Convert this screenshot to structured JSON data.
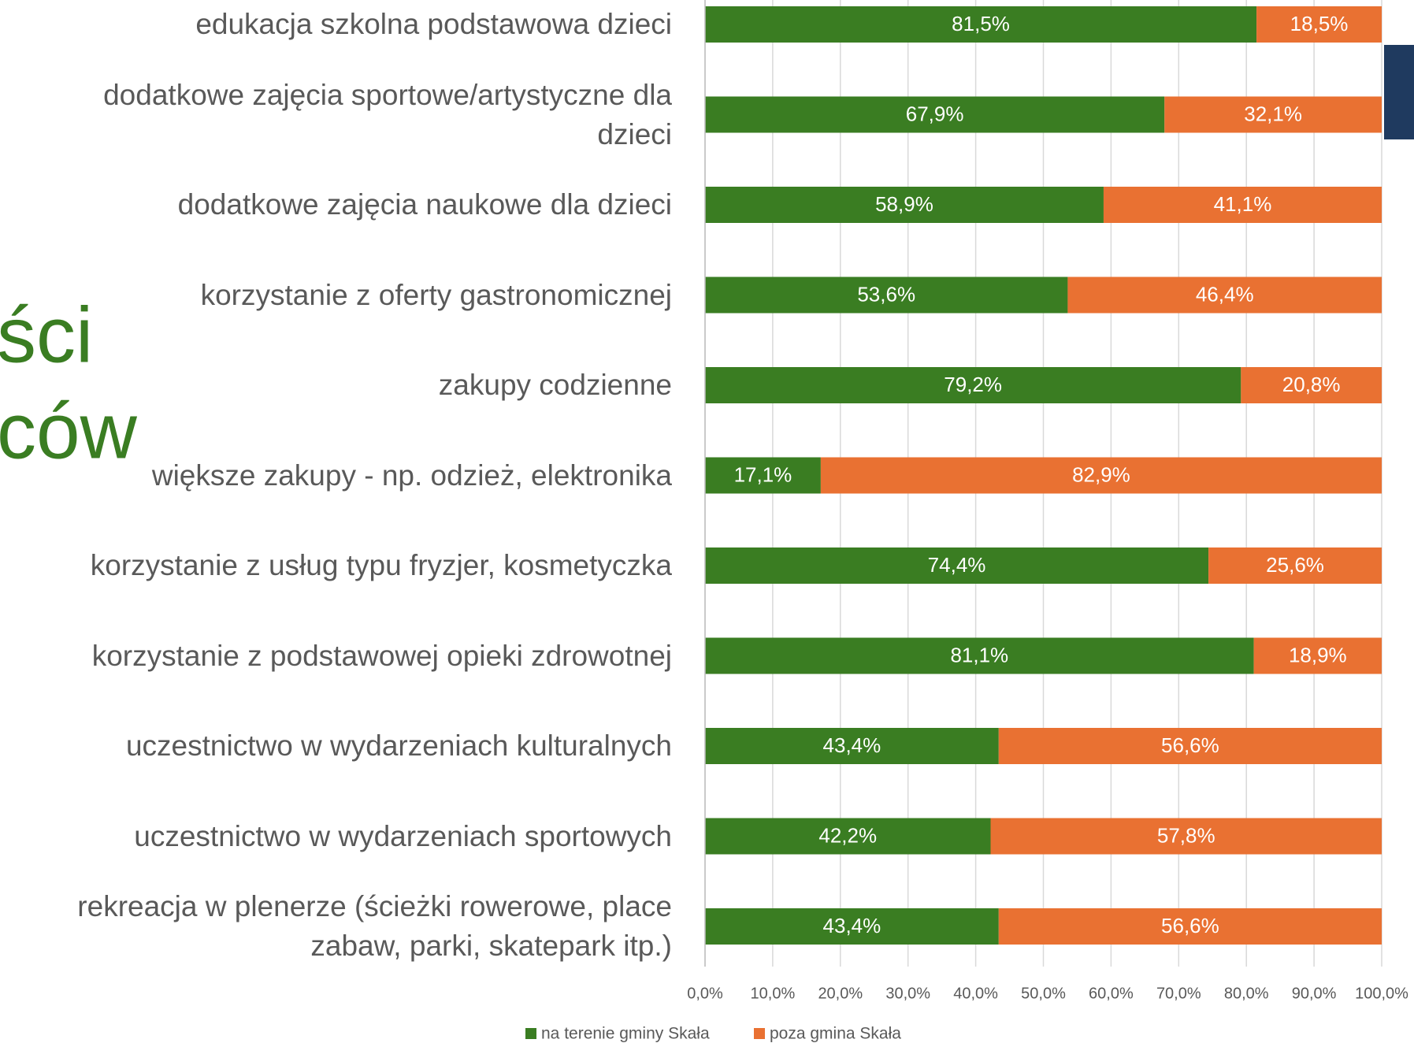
{
  "chart_data": {
    "type": "stacked_barh",
    "fragments": [
      "ści",
      "ców"
    ],
    "categories": [
      "edukacja szkolna podstawowa dzieci",
      "dodatkowe zajęcia sportowe/artystyczne dla\ndzieci",
      "dodatkowe zajęcia naukowe dla dzieci",
      "korzystanie z oferty gastronomicznej",
      "zakupy codzienne",
      "większe zakupy - np. odzież, elektronika",
      "korzystanie z usług typu fryzjer, kosmetyczka",
      "korzystanie z podstawowej opieki zdrowotnej",
      "uczestnictwo w wydarzeniach kulturalnych",
      "uczestnictwo w wydarzeniach sportowych",
      "rekreacja w plenerze (ścieżki rowerowe, place\nzabaw, parki, skatepark itp.)"
    ],
    "series": [
      {
        "name": "na terenie gminy Skała",
        "color": "#3a7d22",
        "values": [
          81.5,
          67.9,
          58.9,
          53.6,
          79.2,
          17.1,
          74.4,
          81.1,
          43.4,
          42.2,
          43.4
        ],
        "value_labels": [
          "81,5%",
          "67,9%",
          "58,9%",
          "53,6%",
          "79,2%",
          "17,1%",
          "74,4%",
          "81,1%",
          "43,4%",
          "42,2%",
          "43,4%"
        ]
      },
      {
        "name": "poza gmina Skała",
        "color": "#e97132",
        "values": [
          18.5,
          32.1,
          41.1,
          46.4,
          20.8,
          82.9,
          25.6,
          18.9,
          56.6,
          57.8,
          56.6
        ],
        "value_labels": [
          "18,5%",
          "32,1%",
          "41,1%",
          "46,4%",
          "20,8%",
          "82,9%",
          "25,6%",
          "18,9%",
          "56,6%",
          "57,8%",
          "56,6%"
        ]
      }
    ],
    "xlim": [
      0,
      100
    ],
    "xticks": [
      {
        "value": 0,
        "label": "0,0%"
      },
      {
        "value": 10,
        "label": "10,0%"
      },
      {
        "value": 20,
        "label": "20,0%"
      },
      {
        "value": 30,
        "label": "30,0%"
      },
      {
        "value": 40,
        "label": "40,0%"
      },
      {
        "value": 50,
        "label": "50,0%"
      },
      {
        "value": 60,
        "label": "60,0%"
      },
      {
        "value": 70,
        "label": "70,0%"
      },
      {
        "value": 80,
        "label": "80,0%"
      },
      {
        "value": 90,
        "label": "90,0%"
      },
      {
        "value": 100,
        "label": "100,0%"
      }
    ],
    "grid": true
  }
}
